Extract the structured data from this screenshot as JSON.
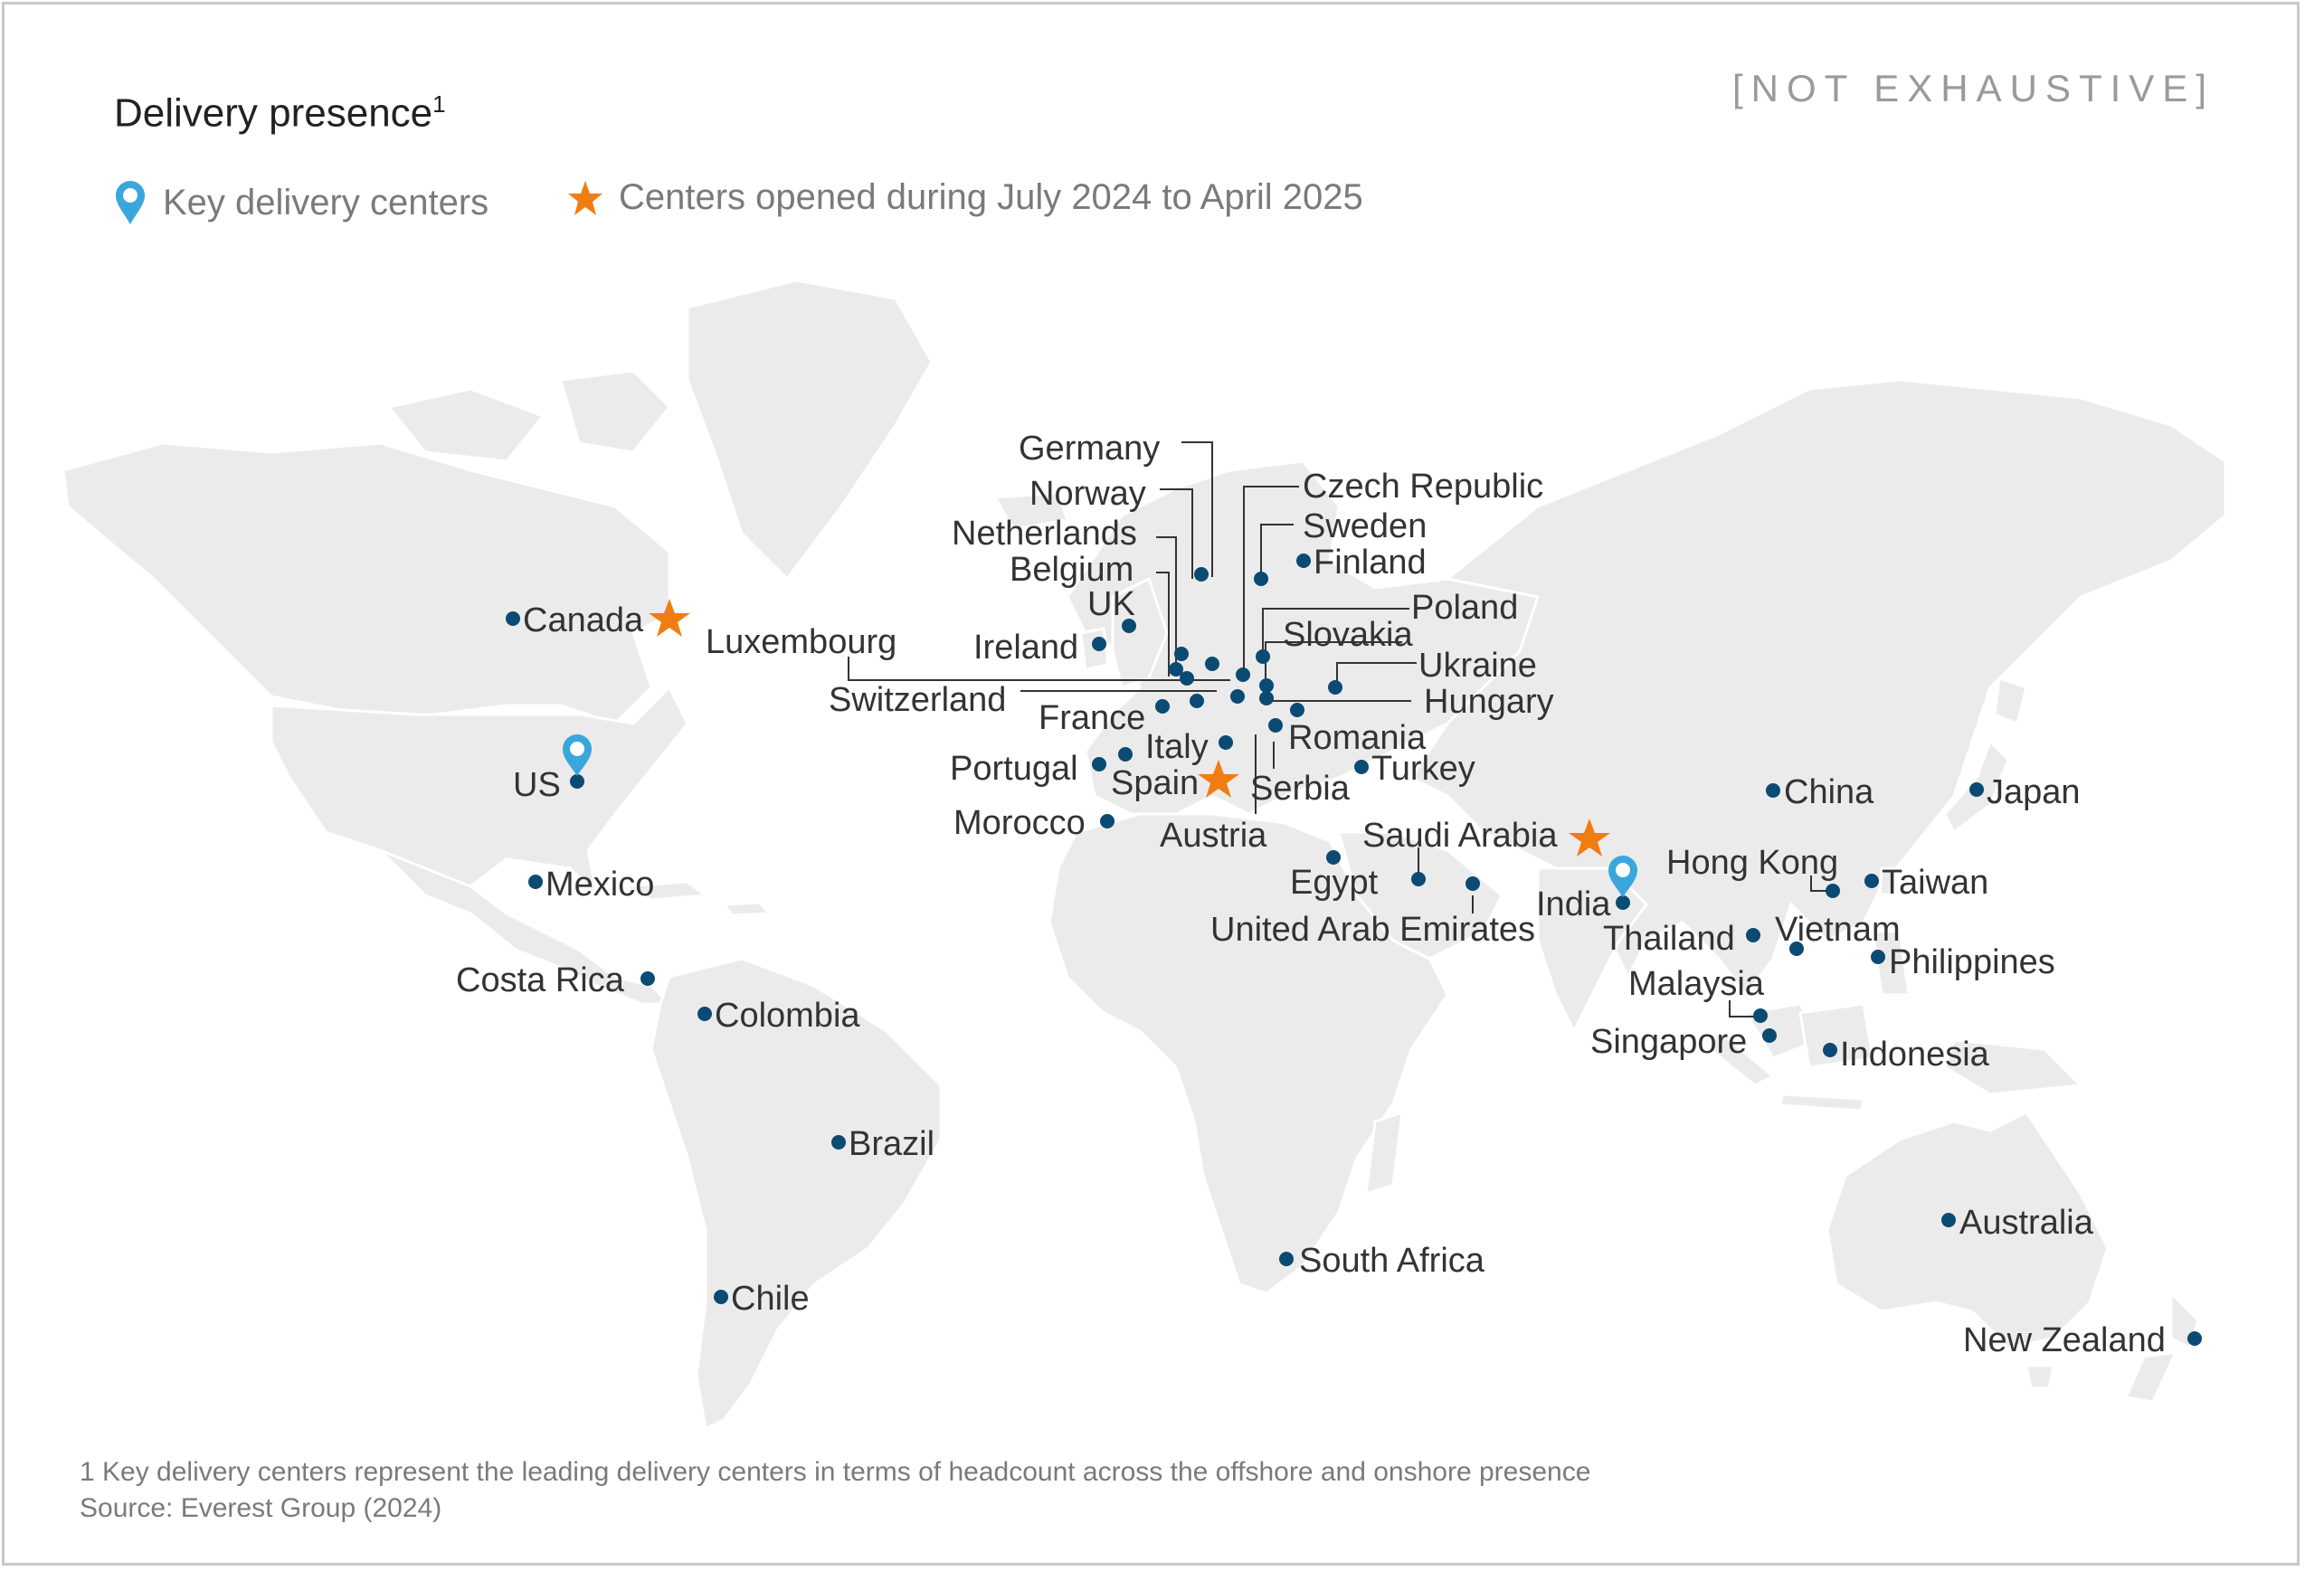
{
  "title": "Delivery presence",
  "title_sup": "1",
  "not_exhaustive": "[NOT EXHAUSTIVE]",
  "legend": {
    "key_centers": "Key delivery centers",
    "new_centers": "Centers opened during July 2024 to April 2025"
  },
  "colors": {
    "dot": "#0b4a73",
    "pin": "#3aa7dc",
    "star": "#f07d12",
    "land": "#ebebeb"
  },
  "icons": {
    "pin": "map-pin-icon",
    "star": "star-icon",
    "dot": "location-dot-icon"
  },
  "key_delivery_centers": [
    "US",
    "India"
  ],
  "centers_opened": [
    "Canada",
    "Spain",
    "Saudi Arabia"
  ],
  "locations": [
    "Canada",
    "US",
    "Mexico",
    "Costa Rica",
    "Colombia",
    "Brazil",
    "Chile",
    "Germany",
    "Norway",
    "Netherlands",
    "Belgium",
    "UK",
    "Ireland",
    "Luxembourg",
    "Switzerland",
    "France",
    "Portugal",
    "Spain",
    "Italy",
    "Morocco",
    "Austria",
    "Czech Republic",
    "Sweden",
    "Finland",
    "Poland",
    "Slovakia",
    "Ukraine",
    "Hungary",
    "Romania",
    "Serbia",
    "Turkey",
    "Egypt",
    "Saudi Arabia",
    "United Arab Emirates",
    "India",
    "China",
    "Hong Kong",
    "Japan",
    "Taiwan",
    "Thailand",
    "Vietnam",
    "Philippines",
    "Malaysia",
    "Singapore",
    "Indonesia",
    "Australia",
    "New Zealand",
    "South Africa"
  ],
  "footnote": "1 Key delivery centers represent the leading delivery centers in terms of headcount across the offshore and onshore presence",
  "source": "Source: Everest Group (2024)"
}
